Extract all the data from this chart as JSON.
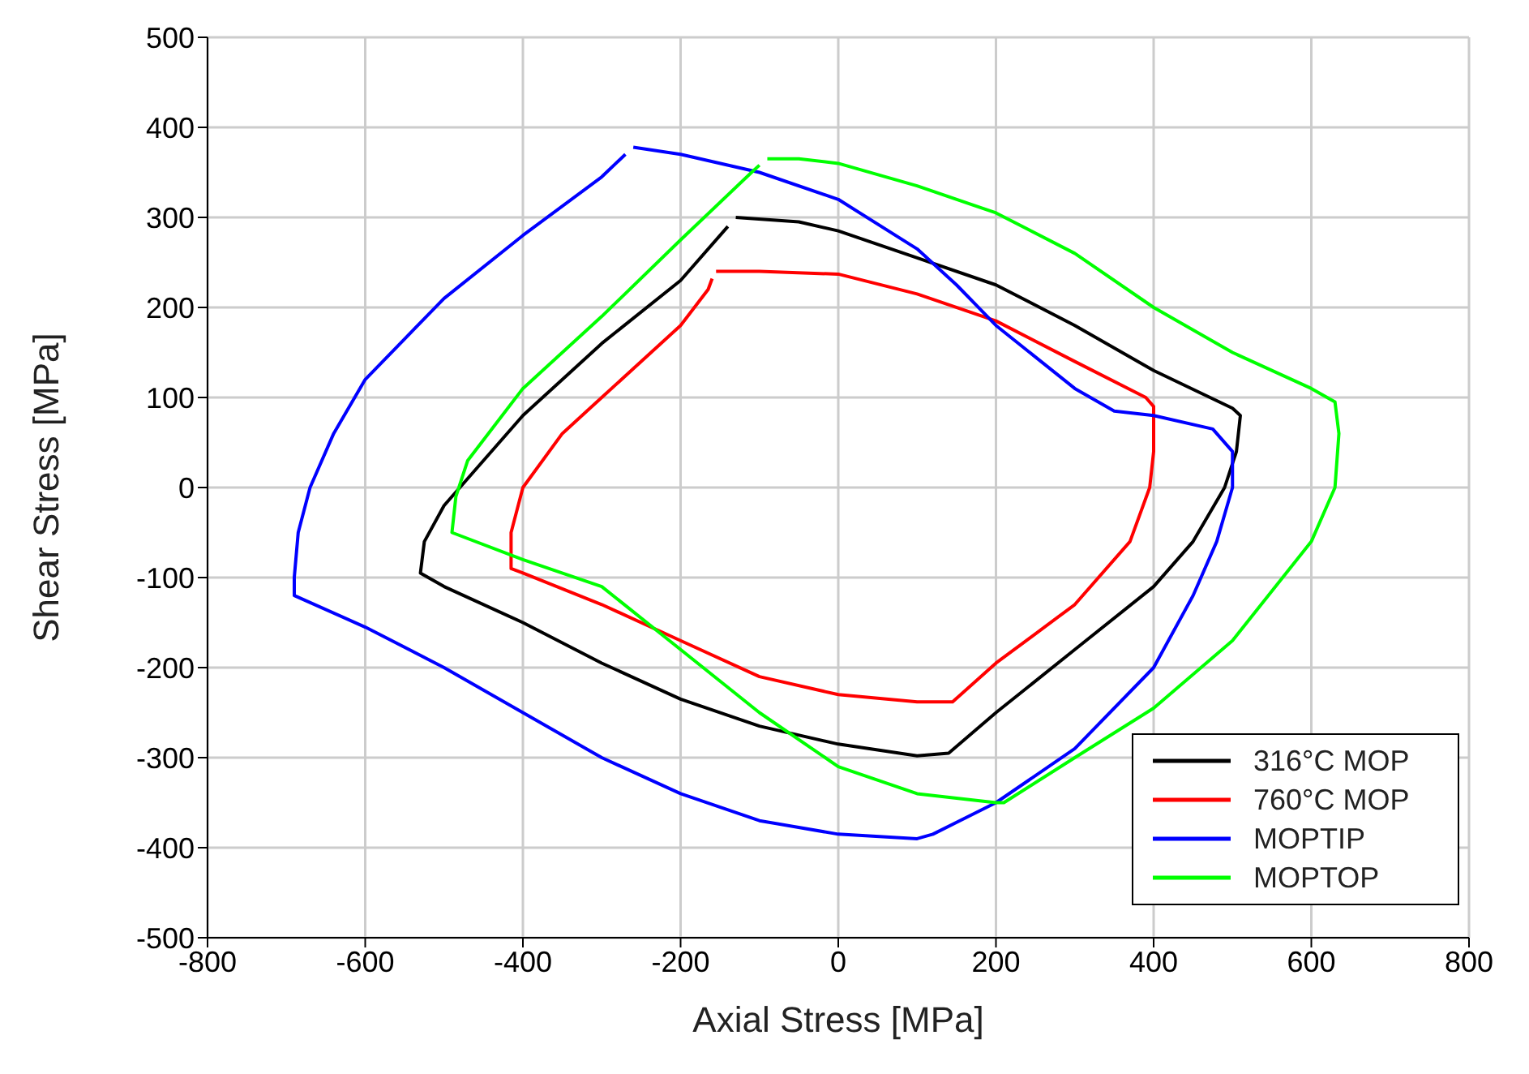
{
  "chart_data": {
    "type": "line",
    "xlabel": "Axial Stress [MPa]",
    "ylabel": "Shear Stress [MPa]",
    "xlim": [
      -800,
      800
    ],
    "xticks": [
      -800,
      -600,
      -400,
      -200,
      0,
      200,
      400,
      600,
      800
    ],
    "ylim": [
      -500,
      500
    ],
    "yticks": [
      -500,
      -400,
      -300,
      -200,
      -100,
      0,
      100,
      200,
      300,
      400,
      500
    ],
    "grid": true,
    "legend": "bottom right",
    "marker": "none",
    "line_style": "solid",
    "series": [
      {
        "name": "316°C MOP",
        "color": "#000000",
        "x": [
          -130,
          -50,
          0,
          100,
          200,
          300,
          400,
          500,
          510,
          505,
          490,
          450,
          400,
          300,
          200,
          140,
          100,
          0,
          -100,
          -200,
          -300,
          -400,
          -500,
          -530,
          -525,
          -500,
          -450,
          -400,
          -300,
          -200,
          -140
        ],
        "values": [
          300,
          295,
          285,
          255,
          225,
          180,
          130,
          88,
          80,
          40,
          0,
          -60,
          -110,
          -180,
          -250,
          -295,
          -298,
          -285,
          -265,
          -235,
          -195,
          -150,
          -110,
          -95,
          -60,
          -20,
          30,
          80,
          160,
          230,
          290
        ]
      },
      {
        "name": "760°C MOP",
        "color": "#ff0000",
        "x": [
          -155,
          -100,
          0,
          100,
          200,
          300,
          390,
          400,
          400,
          395,
          370,
          300,
          200,
          145,
          100,
          0,
          -100,
          -200,
          -300,
          -400,
          -415,
          -415,
          -400,
          -350,
          -300,
          -200,
          -165,
          -160
        ],
        "values": [
          240,
          240,
          237,
          215,
          185,
          140,
          100,
          90,
          40,
          0,
          -60,
          -130,
          -195,
          -238,
          -238,
          -230,
          -210,
          -170,
          -130,
          -95,
          -90,
          -50,
          0,
          60,
          100,
          180,
          220,
          232
        ]
      },
      {
        "name": "MOPTIP",
        "color": "#0000ff",
        "x": [
          -260,
          -200,
          -100,
          0,
          100,
          150,
          200,
          300,
          350,
          400,
          475,
          500,
          500,
          480,
          450,
          400,
          300,
          200,
          120,
          100,
          0,
          -100,
          -200,
          -300,
          -400,
          -500,
          -600,
          -690,
          -690,
          -685,
          -670,
          -640,
          -600,
          -500,
          -400,
          -300,
          -270
        ],
        "values": [
          378,
          370,
          350,
          320,
          265,
          225,
          180,
          110,
          85,
          80,
          65,
          40,
          0,
          -60,
          -120,
          -200,
          -290,
          -350,
          -385,
          -390,
          -385,
          -370,
          -340,
          -300,
          -250,
          -200,
          -155,
          -120,
          -100,
          -50,
          0,
          60,
          120,
          210,
          280,
          345,
          370
        ]
      },
      {
        "name": "MOPTOP",
        "color": "#00ff00",
        "x": [
          -90,
          -50,
          0,
          100,
          200,
          300,
          400,
          500,
          600,
          630,
          635,
          630,
          600,
          500,
          400,
          300,
          210,
          200,
          100,
          0,
          -100,
          -200,
          -300,
          -400,
          -490,
          -485,
          -470,
          -400,
          -300,
          -200,
          -110,
          -100
        ],
        "values": [
          365,
          365,
          360,
          335,
          305,
          260,
          200,
          150,
          110,
          95,
          60,
          0,
          -60,
          -170,
          -245,
          -300,
          -350,
          -350,
          -340,
          -310,
          -250,
          -180,
          -110,
          -80,
          -50,
          -10,
          30,
          110,
          190,
          275,
          350,
          358
        ]
      }
    ]
  }
}
